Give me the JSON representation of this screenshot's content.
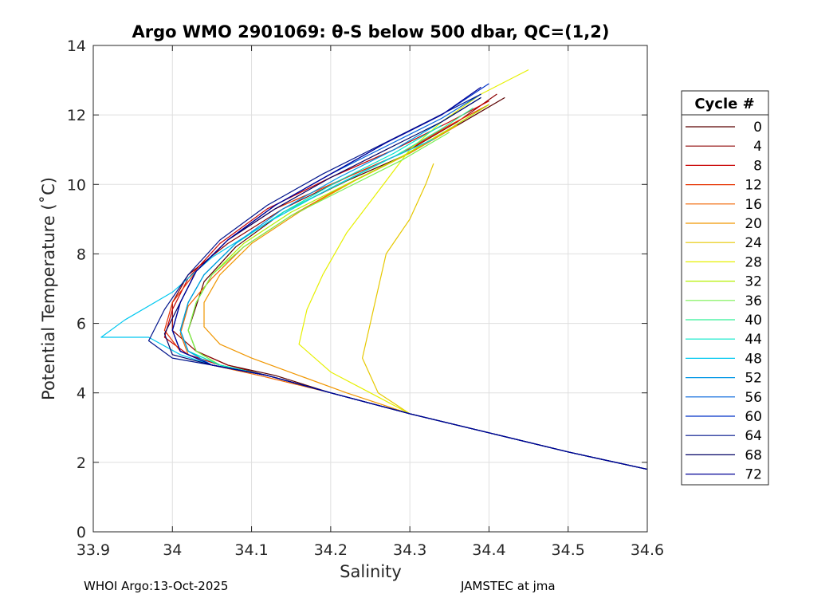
{
  "chart_data": {
    "type": "line",
    "title": "Argo WMO 2901069: θ-S below 500 dbar,  QC=(1,2)",
    "xlabel": "Salinity",
    "ylabel": "Potential Temperature (˚C)",
    "xlim": [
      33.9,
      34.6
    ],
    "ylim": [
      0,
      14
    ],
    "xticks": [
      "33.9",
      "34",
      "34.1",
      "34.2",
      "34.3",
      "34.4",
      "34.5",
      "34.6"
    ],
    "yticks": [
      "0",
      "2",
      "4",
      "6",
      "8",
      "10",
      "12",
      "14"
    ],
    "grid": true,
    "legend": {
      "title": "Cycle #",
      "placement": "outside-right",
      "entries": [
        "0",
        "4",
        "8",
        "12",
        "16",
        "20",
        "24",
        "28",
        "32",
        "36",
        "40",
        "44",
        "48",
        "52",
        "56",
        "60",
        "64",
        "68",
        "72"
      ],
      "colors": [
        "#5a0000",
        "#8c0000",
        "#c80000",
        "#e63200",
        "#f06400",
        "#f09600",
        "#e6c800",
        "#e6f000",
        "#b4f000",
        "#78f050",
        "#32f096",
        "#00e6c8",
        "#00c8f0",
        "#0096e6",
        "#0064dc",
        "#0032c8",
        "#00148c",
        "#000064",
        "#000096"
      ]
    },
    "series": [
      {
        "name": "0",
        "x": [
          34.6,
          34.5,
          34.4,
          34.3,
          34.2,
          34.13,
          34.07,
          34.03,
          34.02,
          34.03,
          34.04,
          34.08,
          34.14,
          34.22,
          34.3,
          34.36,
          34.42
        ],
        "y": [
          1.8,
          2.3,
          2.85,
          3.4,
          4.0,
          4.5,
          4.8,
          5.2,
          5.8,
          6.5,
          7.2,
          8.2,
          9.2,
          10.1,
          10.9,
          11.7,
          12.5
        ]
      },
      {
        "name": "4",
        "x": [
          34.6,
          34.5,
          34.4,
          34.3,
          34.2,
          34.12,
          34.07,
          34.03,
          34.0,
          34.0,
          34.02,
          34.07,
          34.14,
          34.22,
          34.3,
          34.36,
          34.41
        ],
        "y": [
          1.8,
          2.3,
          2.85,
          3.4,
          4.0,
          4.5,
          4.8,
          5.2,
          5.8,
          6.6,
          7.4,
          8.3,
          9.3,
          10.2,
          11.0,
          11.8,
          12.6
        ]
      },
      {
        "name": "8",
        "x": [
          34.6,
          34.5,
          34.4,
          34.3,
          34.2,
          34.12,
          34.06,
          34.02,
          33.99,
          34.0,
          34.02,
          34.06,
          34.12,
          34.2,
          34.28,
          34.35,
          34.4
        ],
        "y": [
          1.8,
          2.3,
          2.85,
          3.4,
          4.0,
          4.5,
          4.8,
          5.1,
          5.6,
          6.4,
          7.3,
          8.3,
          9.3,
          10.2,
          11.0,
          11.8,
          12.4
        ]
      },
      {
        "name": "12",
        "x": [
          34.6,
          34.5,
          34.4,
          34.3,
          34.2,
          34.12,
          34.05,
          34.01,
          33.99,
          34.0,
          34.03,
          34.07,
          34.13,
          34.21,
          34.29,
          34.35,
          34.4
        ],
        "y": [
          1.8,
          2.3,
          2.85,
          3.4,
          4.0,
          4.5,
          4.8,
          5.2,
          5.8,
          6.6,
          7.5,
          8.4,
          9.3,
          10.1,
          10.9,
          11.7,
          12.3
        ]
      },
      {
        "name": "16",
        "x": [
          34.6,
          34.5,
          34.4,
          34.3,
          34.2,
          34.11,
          34.05,
          34.02,
          34.01,
          34.02,
          34.05,
          34.09,
          34.15,
          34.22,
          34.29,
          34.35,
          34.4
        ],
        "y": [
          1.8,
          2.3,
          2.85,
          3.4,
          4.0,
          4.5,
          4.8,
          5.1,
          5.7,
          6.5,
          7.3,
          8.2,
          9.1,
          10.0,
          10.8,
          11.6,
          12.3
        ]
      },
      {
        "name": "20",
        "x": [
          34.6,
          34.5,
          34.4,
          34.3,
          34.22,
          34.16,
          34.1,
          34.06,
          34.04,
          34.04,
          34.06,
          34.1,
          34.16,
          34.23,
          34.3,
          34.36
        ],
        "y": [
          1.8,
          2.3,
          2.85,
          3.4,
          4.0,
          4.5,
          5.0,
          5.4,
          5.9,
          6.6,
          7.4,
          8.3,
          9.2,
          10.1,
          10.9,
          11.7
        ]
      },
      {
        "name": "24",
        "x": [
          34.6,
          34.5,
          34.4,
          34.3,
          34.26,
          34.24,
          34.25,
          34.26,
          34.27,
          34.3,
          34.32,
          34.33
        ],
        "y": [
          1.8,
          2.3,
          2.85,
          3.4,
          4.0,
          5.0,
          6.0,
          7.0,
          8.0,
          9.0,
          10.0,
          10.6
        ]
      },
      {
        "name": "28",
        "x": [
          34.6,
          34.5,
          34.4,
          34.3,
          34.25,
          34.2,
          34.16,
          34.17,
          34.19,
          34.22,
          34.26,
          34.3,
          34.34,
          34.39,
          34.45
        ],
        "y": [
          1.8,
          2.3,
          2.85,
          3.4,
          4.0,
          4.6,
          5.4,
          6.4,
          7.4,
          8.6,
          9.8,
          11.0,
          11.8,
          12.6,
          13.3
        ]
      },
      {
        "name": "32",
        "x": [
          34.6,
          34.5,
          34.4,
          34.3,
          34.2,
          34.12,
          34.06,
          34.03,
          34.02,
          34.03,
          34.05,
          34.09,
          34.15,
          34.22,
          34.29,
          34.35,
          34.4
        ],
        "y": [
          1.8,
          2.3,
          2.85,
          3.4,
          4.0,
          4.5,
          4.8,
          5.2,
          5.8,
          6.6,
          7.4,
          8.3,
          9.2,
          10.0,
          10.8,
          11.6,
          12.3
        ]
      },
      {
        "name": "36",
        "x": [
          34.6,
          34.5,
          34.4,
          34.3,
          34.2,
          34.12,
          34.06,
          34.03,
          34.02,
          34.03,
          34.05,
          34.09,
          34.15,
          34.22,
          34.29,
          34.35
        ],
        "y": [
          1.8,
          2.3,
          2.85,
          3.4,
          4.0,
          4.5,
          4.8,
          5.2,
          5.8,
          6.6,
          7.4,
          8.2,
          9.1,
          9.9,
          10.7,
          11.5
        ]
      },
      {
        "name": "40",
        "x": [
          34.6,
          34.5,
          34.4,
          34.3,
          34.2,
          34.12,
          34.06,
          34.02,
          34.01,
          34.02,
          34.04,
          34.08,
          34.14,
          34.21,
          34.28,
          34.34,
          34.38
        ],
        "y": [
          1.8,
          2.3,
          2.85,
          3.4,
          4.0,
          4.5,
          4.8,
          5.2,
          5.8,
          6.6,
          7.4,
          8.3,
          9.2,
          10.0,
          10.8,
          11.6,
          12.2
        ]
      },
      {
        "name": "44",
        "x": [
          34.6,
          34.5,
          34.4,
          34.3,
          34.2,
          34.12,
          34.06,
          34.02,
          34.01,
          34.02,
          34.04,
          34.08,
          34.14,
          34.21,
          34.28,
          34.34
        ],
        "y": [
          1.8,
          2.3,
          2.85,
          3.4,
          4.0,
          4.5,
          4.8,
          5.2,
          5.8,
          6.6,
          7.4,
          8.3,
          9.2,
          10.1,
          10.9,
          11.7
        ]
      },
      {
        "name": "48",
        "x": [
          34.6,
          34.5,
          34.4,
          34.3,
          34.2,
          34.12,
          34.05,
          34.01,
          33.97,
          33.91,
          33.94,
          34.0,
          34.05,
          34.12,
          34.2,
          34.27,
          34.33
        ],
        "y": [
          1.8,
          2.3,
          2.85,
          3.4,
          4.0,
          4.5,
          4.8,
          5.1,
          5.6,
          5.6,
          6.1,
          6.9,
          7.9,
          8.9,
          9.9,
          10.7,
          11.3
        ]
      },
      {
        "name": "52",
        "x": [
          34.6,
          34.5,
          34.4,
          34.3,
          34.2,
          34.12,
          34.05,
          34.02,
          34.01,
          34.02,
          34.04,
          34.08,
          34.14,
          34.21,
          34.28,
          34.34,
          34.39
        ],
        "y": [
          1.8,
          2.3,
          2.85,
          3.4,
          4.0,
          4.5,
          4.8,
          5.2,
          5.8,
          6.6,
          7.4,
          8.3,
          9.3,
          10.2,
          11.0,
          11.8,
          12.5
        ]
      },
      {
        "name": "56",
        "x": [
          34.6,
          34.5,
          34.4,
          34.3,
          34.2,
          34.12,
          34.05,
          34.01,
          34.0,
          34.01,
          34.03,
          34.07,
          34.13,
          34.2,
          34.27,
          34.34,
          34.39
        ],
        "y": [
          1.8,
          2.3,
          2.85,
          3.4,
          4.0,
          4.5,
          4.8,
          5.2,
          5.8,
          6.6,
          7.5,
          8.4,
          9.4,
          10.3,
          11.1,
          11.9,
          12.6
        ]
      },
      {
        "name": "60",
        "x": [
          34.6,
          34.5,
          34.4,
          34.3,
          34.2,
          34.12,
          34.05,
          34.01,
          34.0,
          34.01,
          34.03,
          34.07,
          34.13,
          34.2,
          34.27,
          34.34,
          34.4
        ],
        "y": [
          1.8,
          2.3,
          2.85,
          3.4,
          4.0,
          4.5,
          4.8,
          5.2,
          5.8,
          6.6,
          7.5,
          8.4,
          9.4,
          10.3,
          11.2,
          12.0,
          12.9
        ]
      },
      {
        "name": "64",
        "x": [
          34.6,
          34.5,
          34.4,
          34.3,
          34.2,
          34.12,
          34.05,
          34.0,
          33.97,
          33.99,
          34.02,
          34.06,
          34.12,
          34.19,
          34.26,
          34.33,
          34.39
        ],
        "y": [
          1.8,
          2.3,
          2.85,
          3.4,
          4.0,
          4.5,
          4.8,
          5.0,
          5.5,
          6.4,
          7.4,
          8.4,
          9.4,
          10.3,
          11.1,
          11.9,
          12.6
        ]
      },
      {
        "name": "68",
        "x": [
          34.6,
          34.5,
          34.4,
          34.3,
          34.2,
          34.12,
          34.05,
          34.0,
          33.99,
          34.01,
          34.03,
          34.07,
          34.13,
          34.2,
          34.27,
          34.34,
          34.39
        ],
        "y": [
          1.8,
          2.3,
          2.85,
          3.4,
          4.0,
          4.5,
          4.8,
          5.1,
          5.7,
          6.6,
          7.5,
          8.4,
          9.3,
          10.2,
          11.0,
          11.8,
          12.5
        ]
      },
      {
        "name": "72",
        "x": [
          34.6,
          34.5,
          34.4,
          34.3,
          34.2,
          34.12,
          34.05,
          34.01,
          34.0,
          34.01,
          34.03,
          34.07,
          34.13,
          34.2,
          34.27,
          34.34,
          34.39
        ],
        "y": [
          1.8,
          2.3,
          2.85,
          3.4,
          4.0,
          4.5,
          4.8,
          5.2,
          5.8,
          6.6,
          7.5,
          8.4,
          9.4,
          10.3,
          11.2,
          12.0,
          12.8
        ]
      }
    ]
  },
  "footer": {
    "left": "WHOI Argo:13-Oct-2025",
    "right": "JAMSTEC at jma"
  }
}
